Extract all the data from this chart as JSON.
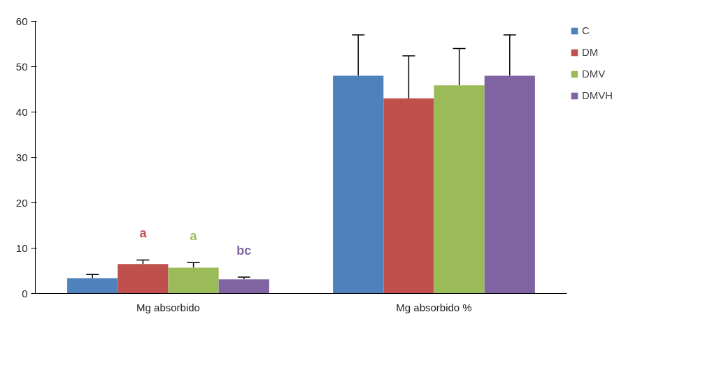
{
  "chart_data": {
    "type": "bar",
    "categories": [
      "Mg absorbido",
      "Mg absorbido %"
    ],
    "series": [
      {
        "name": "C",
        "color": "#4f81bd",
        "values": [
          3.4,
          48
        ],
        "errors": [
          [
            3.4,
            4.2
          ],
          [
            48,
            57
          ]
        ]
      },
      {
        "name": "DM",
        "color": "#c0504d",
        "values": [
          6.5,
          43
        ],
        "errors": [
          [
            6.5,
            7.4
          ],
          [
            43,
            52.4
          ]
        ]
      },
      {
        "name": "DMV",
        "color": "#9bbb59",
        "values": [
          5.7,
          45.9
        ],
        "errors": [
          [
            5.7,
            6.8
          ],
          [
            45.9,
            54
          ]
        ]
      },
      {
        "name": "DMVH",
        "color": "#8064a2",
        "values": [
          3.1,
          48
        ],
        "errors": [
          [
            3.1,
            3.6
          ],
          [
            48,
            57
          ]
        ]
      }
    ],
    "annotations": [
      "a",
      "a",
      "bc"
    ],
    "ylim": [
      0,
      60
    ],
    "yticks": [
      0,
      10,
      20,
      30,
      40,
      50,
      60
    ],
    "grid": false,
    "legend": "top right"
  }
}
